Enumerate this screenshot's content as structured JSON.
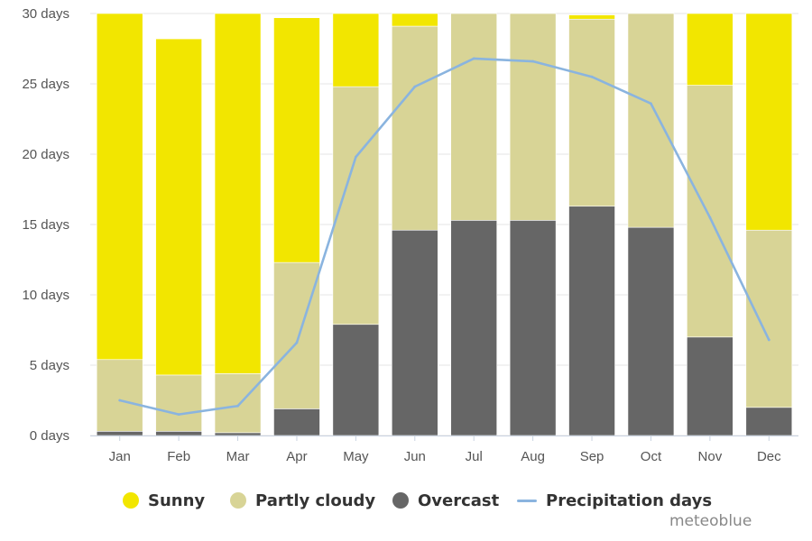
{
  "chart_data": {
    "type": "bar",
    "stacked": true,
    "categories": [
      "Jan",
      "Feb",
      "Mar",
      "Apr",
      "May",
      "Jun",
      "Jul",
      "Aug",
      "Sep",
      "Oct",
      "Nov",
      "Dec"
    ],
    "y_ticks": [
      "0 days",
      "5 days",
      "10 days",
      "15 days",
      "20 days",
      "25 days",
      "30 days"
    ],
    "ylim": [
      0,
      30
    ],
    "grid": true,
    "legend_position": "bottom",
    "series": [
      {
        "name": "Overcast",
        "kind": "bar",
        "color": "#666666",
        "values": [
          0.3,
          0.3,
          0.2,
          1.9,
          7.9,
          14.6,
          15.3,
          15.3,
          16.3,
          14.8,
          7.0,
          2.0
        ]
      },
      {
        "name": "Partly cloudy",
        "kind": "bar",
        "color": "#d8d496",
        "values": [
          5.1,
          4.0,
          4.2,
          10.4,
          16.9,
          14.5,
          14.7,
          14.7,
          13.3,
          15.2,
          17.9,
          12.6
        ]
      },
      {
        "name": "Sunny",
        "kind": "bar",
        "color": "#f2e600",
        "values": [
          24.6,
          23.9,
          25.6,
          17.4,
          5.2,
          0.9,
          0.0,
          0.0,
          0.3,
          0.0,
          5.1,
          15.4
        ]
      },
      {
        "name": "Precipitation days",
        "kind": "line",
        "color": "#8ab4df",
        "values": [
          2.5,
          1.5,
          2.1,
          6.6,
          19.8,
          24.8,
          26.8,
          26.6,
          25.5,
          23.6,
          15.5,
          6.8
        ]
      }
    ]
  },
  "legend": {
    "items": [
      {
        "label": "Sunny",
        "color": "#f2e600",
        "shape": "dot"
      },
      {
        "label": "Partly cloudy",
        "color": "#d8d496",
        "shape": "dot"
      },
      {
        "label": "Overcast",
        "color": "#666666",
        "shape": "dot"
      },
      {
        "label": "Precipitation days",
        "color": "#8ab4df",
        "shape": "line"
      }
    ]
  },
  "credit": "meteoblue"
}
